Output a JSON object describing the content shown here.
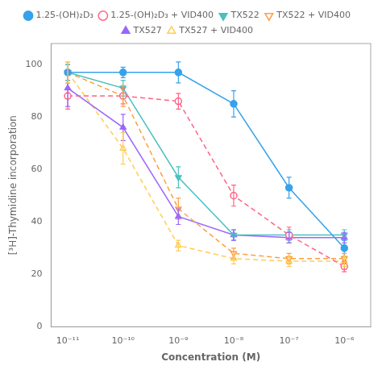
{
  "chart_data": {
    "type": "line",
    "x_label": "Concentration (M)",
    "y_label": "[³H]-Thymidine incorporation",
    "x": [
      1e-11,
      1e-10,
      1e-09,
      1e-08,
      1e-07,
      1e-06
    ],
    "series": [
      {
        "name": "1.25-(OH)₂D₃",
        "values": [
          97,
          97,
          97,
          85,
          53,
          30
        ],
        "errors": [
          3,
          2,
          4,
          5,
          4,
          3
        ],
        "marker": "circle",
        "line_style": "solid"
      },
      {
        "name": "1.25-(OH)₂D₃ + VID400",
        "values": [
          88,
          88,
          86,
          50,
          35,
          23
        ],
        "errors": [
          5,
          3,
          3,
          4,
          3,
          2
        ],
        "marker": "circle-open",
        "line_style": "dashed"
      },
      {
        "name": "TX522",
        "values": [
          97,
          91,
          57,
          35,
          35,
          35
        ],
        "errors": [
          3,
          3,
          4,
          2,
          2,
          2
        ],
        "marker": "triangle-down",
        "line_style": "solid"
      },
      {
        "name": "TX522 + VID400",
        "values": [
          97,
          88,
          45,
          28,
          26,
          26
        ],
        "errors": [
          4,
          4,
          4,
          2,
          2,
          2
        ],
        "marker": "triangle-down-open",
        "line_style": "dashed"
      },
      {
        "name": "TX527",
        "values": [
          91,
          76,
          42,
          35,
          34,
          34
        ],
        "errors": [
          7,
          5,
          3,
          2,
          2,
          2
        ],
        "marker": "triangle-up",
        "line_style": "solid"
      },
      {
        "name": "TX527 + VID400",
        "values": [
          97,
          68,
          31,
          26,
          25,
          25
        ],
        "errors": [
          4,
          6,
          2,
          2,
          2,
          2
        ],
        "marker": "triangle-up-open",
        "line_style": "dashed"
      }
    ],
    "log": "x",
    "xlim": [
      5e-12,
      3e-06
    ],
    "xticks": [
      {
        "value": 1e-11,
        "label": "10⁻¹¹"
      },
      {
        "value": 1e-10,
        "label": "10⁻¹⁰"
      },
      {
        "value": 1e-09,
        "label": "10⁻⁹"
      },
      {
        "value": 1e-08,
        "label": "10⁻⁸"
      },
      {
        "value": 1e-07,
        "label": "10⁻⁷"
      },
      {
        "value": 1e-06,
        "label": "10⁻⁶"
      }
    ],
    "ylim": [
      0,
      108
    ],
    "yticks": [
      0,
      20,
      40,
      60,
      80,
      100
    ],
    "grid": false,
    "legend": "top"
  }
}
